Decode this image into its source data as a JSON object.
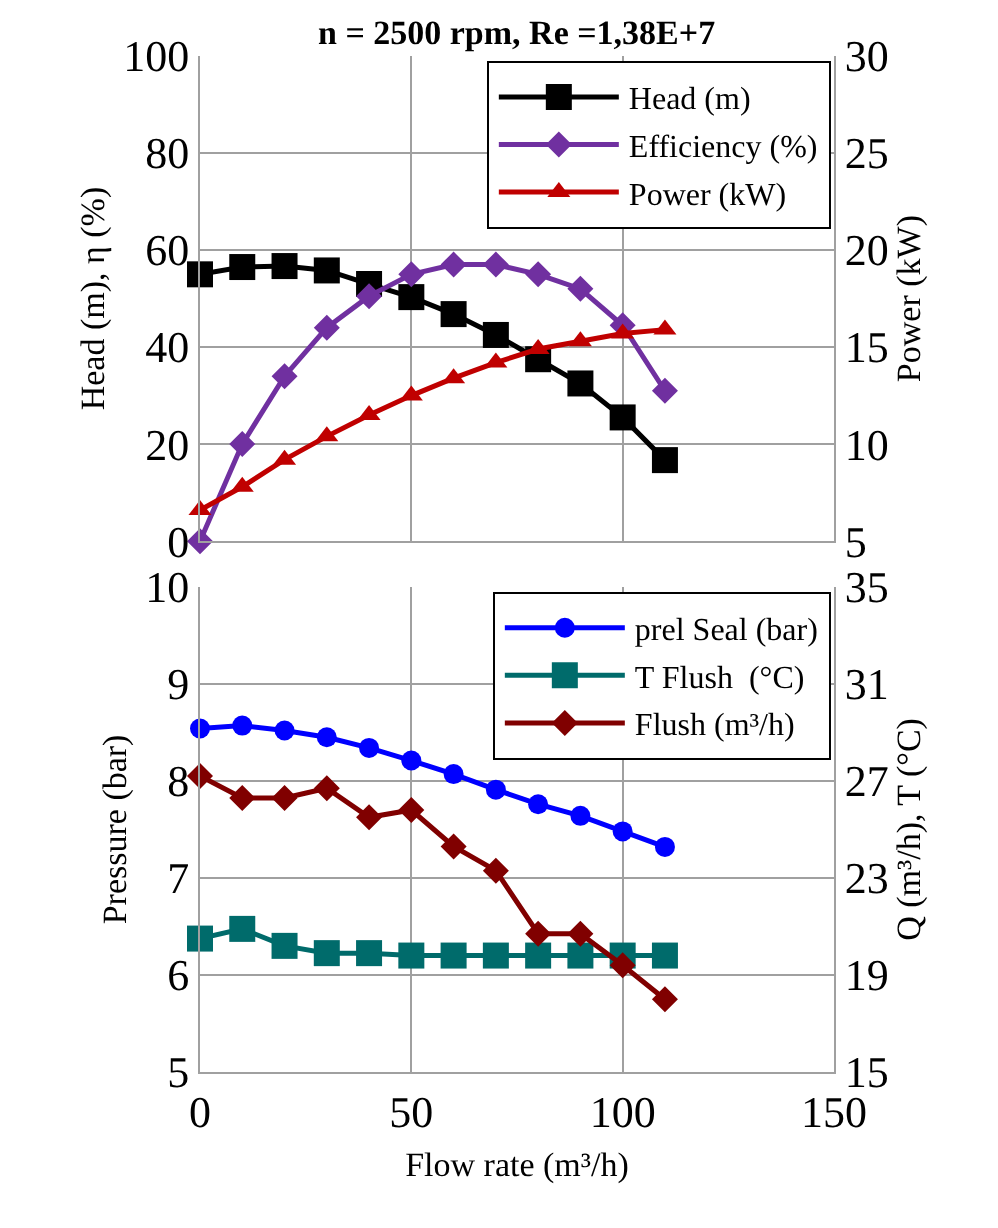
{
  "chart_data": [
    {
      "type": "line",
      "title": "n = 2500 rpm, Re =1,38E+7",
      "ylabel": "Head (m), η (%)",
      "y2label": "Power (kW)",
      "x": [
        0,
        10,
        20,
        30,
        40,
        50,
        60,
        70,
        80,
        90,
        100,
        110
      ],
      "xlim": [
        0,
        150
      ],
      "xticks": [
        {
          "value": 0,
          "label": null
        },
        {
          "value": 50,
          "label": null
        },
        {
          "value": 100,
          "label": null
        },
        {
          "value": 150,
          "label": null
        }
      ],
      "ylim": [
        0,
        100
      ],
      "yticks": [
        0,
        20,
        40,
        60,
        80,
        100
      ],
      "y2lim": [
        5,
        30
      ],
      "y2ticks": [
        5,
        10,
        15,
        20,
        25,
        30
      ],
      "tick_labels": "y",
      "grid": true,
      "legend": "top right",
      "series": [
        {
          "name": "Head (m)",
          "color": "#000000",
          "marker": "square",
          "values": [
            55,
            56.5,
            56.7,
            55.8,
            53,
            50.3,
            46.8,
            42.5,
            37.5,
            32.5,
            25.5,
            16.7
          ]
        },
        {
          "name": "Efficiency (%)",
          "color": "#7030a0",
          "marker": "diamond",
          "values": [
            0,
            20,
            34,
            44,
            50.5,
            55,
            57,
            57,
            55,
            52,
            44.5,
            31
          ]
        },
        {
          "name": "Power (kW)",
          "color": "#c00000",
          "marker": "triangle",
          "axis": "y2",
          "values": [
            6.6,
            7.8,
            9.2,
            10.4,
            11.5,
            12.5,
            13.4,
            14.2,
            14.9,
            15.3,
            15.7,
            15.9
          ]
        }
      ]
    },
    {
      "type": "line",
      "xlabel": "Flow rate (m³/h)",
      "ylabel": "Pressure (bar)",
      "y2label": "Q (m³/h), T (°C)",
      "x": [
        0,
        10,
        20,
        30,
        40,
        50,
        60,
        70,
        80,
        90,
        100,
        110
      ],
      "xlim": [
        0,
        150
      ],
      "xticks": [
        0,
        50,
        100,
        150
      ],
      "ylim": [
        5,
        10
      ],
      "yticks": [
        5,
        6,
        7,
        8,
        9,
        10
      ],
      "y2lim": [
        15,
        35
      ],
      "y2ticks": [
        15,
        19,
        23,
        27,
        31,
        35
      ],
      "grid": true,
      "legend": "top right",
      "series": [
        {
          "name": "prel Seal (bar)",
          "color": "#0000ff",
          "marker": "circle",
          "values": [
            8.54,
            8.57,
            8.52,
            8.45,
            8.34,
            8.21,
            8.07,
            7.91,
            7.76,
            7.64,
            7.48,
            7.32
          ]
        },
        {
          "name": "T Flush  (°C)",
          "color": "#006b6b",
          "marker": "square",
          "axis": "y2",
          "values": [
            20.5,
            20.9,
            20.2,
            19.9,
            19.9,
            19.8,
            19.8,
            19.8,
            19.8,
            19.8,
            19.8,
            19.8
          ]
        },
        {
          "name": "Flush (m³/h)",
          "color": "#800000",
          "marker": "diamond",
          "axis": "y2",
          "values": [
            27.2,
            26.3,
            26.3,
            26.7,
            25.5,
            25.8,
            24.3,
            23.3,
            20.7,
            20.7,
            19.4,
            18.0
          ]
        }
      ]
    }
  ]
}
